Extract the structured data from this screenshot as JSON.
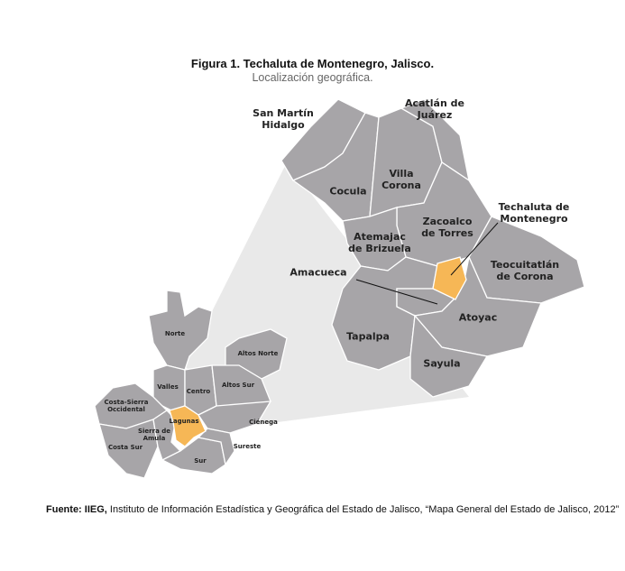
{
  "figure": {
    "title": "Figura 1. Techaluta de Montenegro, Jalisco.",
    "subtitle": "Localización geográfica."
  },
  "colors": {
    "municipality": "#a7a5a8",
    "highlight": "#f6b756",
    "zoom_cone": "#e9e9e9"
  },
  "detail_map": {
    "labels": {
      "san_martin": "San Martín\nHidalgo",
      "acatlan": "Acatlán de\nJuárez",
      "cocula": "Cocula",
      "villa_corona": "Villa\nCorona",
      "techaluta": "Techaluta de\nMontenegro",
      "zacoalco": "Zacoalco\nde Torres",
      "atemajac": "Atemajac\nde Brizuela",
      "teocuitatlan": "Teocuitatlán\nde Corona",
      "amacueca": "Amacueca",
      "tapalpa": "Tapalpa",
      "atoyac": "Atoyac",
      "sayula": "Sayula"
    },
    "highlighted": "Techaluta de Montenegro"
  },
  "state_map": {
    "labels": {
      "norte": "Norte",
      "altos_norte": "Altos Norte",
      "valles": "Valles",
      "centro": "Centro",
      "altos_sur": "Altos Sur",
      "costa_sierra": "Costa-Sierra\nOccidental",
      "lagunas": "Lagunas",
      "sierra_amula": "Sierra de\nAmula",
      "cienega": "Ciénega",
      "costa_sur": "Costa Sur",
      "sureste": "Sureste",
      "sur": "Sur"
    },
    "highlighted": "Lagunas"
  },
  "source": {
    "bold": "Fuente: IIEG,",
    "text": " Instituto de Información Estadística y Geográfica del Estado de Jalisco, “Mapa General del Estado de Jalisco, 2012”"
  }
}
